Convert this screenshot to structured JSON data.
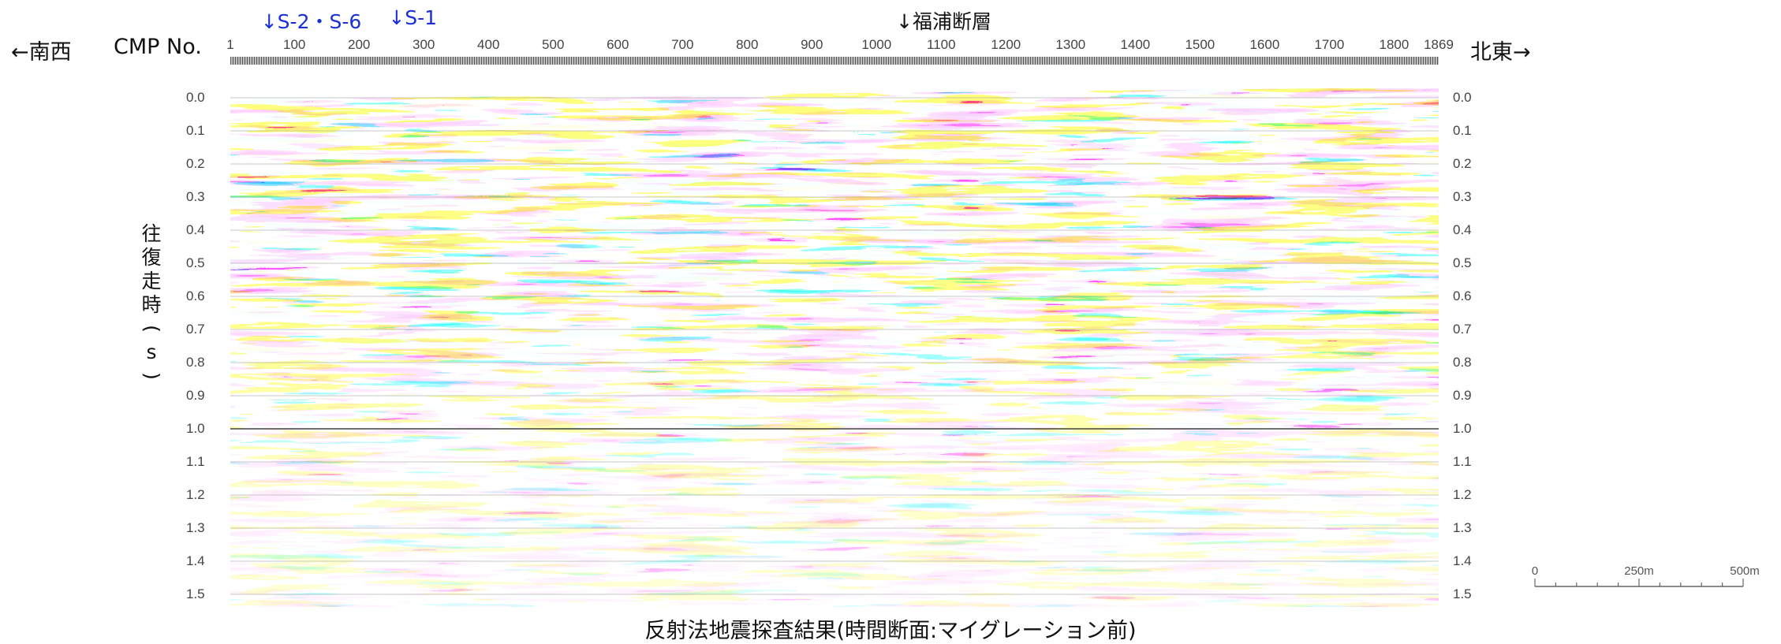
{
  "header": {
    "left_direction": "←南西",
    "right_direction": "北東→",
    "cmp_label": "CMP No.",
    "cmp_ticks": [
      "1",
      "100",
      "200",
      "300",
      "400",
      "500",
      "600",
      "700",
      "800",
      "900",
      "1000",
      "1100",
      "1200",
      "1300",
      "1400",
      "1500",
      "1600",
      "1700",
      "1800",
      "1869"
    ]
  },
  "markers": [
    {
      "text": "↓S-2・S-6",
      "cmp": 58,
      "color": "#1a2fd6"
    },
    {
      "text": "↓S-1",
      "cmp": 255,
      "color": "#1a2fd6"
    },
    {
      "text": "↓福浦断層",
      "cmp": 1040,
      "color": "#111111"
    }
  ],
  "time_axis": {
    "label": "往復走時(s)",
    "ticks": [
      "0.0",
      "0.1",
      "0.2",
      "0.3",
      "0.4",
      "0.5",
      "0.6",
      "0.7",
      "0.8",
      "0.9",
      "1.0",
      "1.1",
      "1.2",
      "1.3",
      "1.4",
      "1.5"
    ]
  },
  "scale_bar": {
    "labels": [
      "0",
      "250m",
      "500m"
    ]
  },
  "caption": "反射法地震探査結果(時間断面:マイグレーション前)",
  "colors": {
    "positive": "#e52de0",
    "negative": "#0c13c8",
    "weak_pos": "#f0a020",
    "weak_neg": "#40c8e8"
  }
}
